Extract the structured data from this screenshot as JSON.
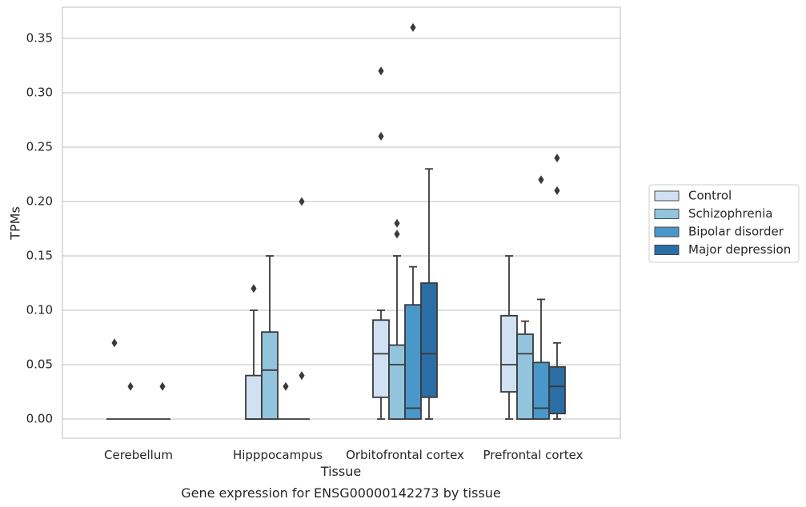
{
  "chart_data": {
    "type": "box",
    "title": "",
    "caption": "Gene expression for ENSG00000142273 by tissue",
    "xlabel": "Tissue",
    "ylabel": "TPMs",
    "ylim": [
      -0.018,
      0.378
    ],
    "yticks": [
      "0.00",
      "0.05",
      "0.10",
      "0.15",
      "0.20",
      "0.25",
      "0.30",
      "0.35"
    ],
    "ytick_values": [
      0,
      0.05,
      0.1,
      0.15,
      0.2,
      0.25,
      0.3,
      0.35
    ],
    "grid": "horizontal",
    "legend_position": "right",
    "categories": [
      "Cerebellum",
      "Hipppocampus",
      "Orbitofrontal cortex",
      "Prefrontal cortex"
    ],
    "series": [
      {
        "name": "Control",
        "color": "#cfe1f2",
        "boxes": [
          {
            "q1": 0,
            "median": 0,
            "q3": 0,
            "whislo": 0,
            "whishi": 0,
            "fliers": [
              0.07
            ]
          },
          {
            "q1": 0,
            "median": 0,
            "q3": 0.04,
            "whislo": 0,
            "whishi": 0.1,
            "fliers": [
              0.12
            ]
          },
          {
            "q1": 0.02,
            "median": 0.06,
            "q3": 0.091,
            "whislo": 0,
            "whishi": 0.1,
            "fliers": [
              0.26,
              0.32
            ]
          },
          {
            "q1": 0.025,
            "median": 0.05,
            "q3": 0.095,
            "whislo": 0,
            "whishi": 0.15,
            "fliers": []
          }
        ]
      },
      {
        "name": "Schizophrenia",
        "color": "#93c4de",
        "boxes": [
          {
            "q1": 0,
            "median": 0,
            "q3": 0,
            "whislo": 0,
            "whishi": 0,
            "fliers": [
              0.03
            ]
          },
          {
            "q1": 0,
            "median": 0.045,
            "q3": 0.08,
            "whislo": 0,
            "whishi": 0.15,
            "fliers": []
          },
          {
            "q1": 0,
            "median": 0.05,
            "q3": 0.068,
            "whislo": 0,
            "whishi": 0.15,
            "fliers": [
              0.17,
              0.18
            ]
          },
          {
            "q1": 0,
            "median": 0.06,
            "q3": 0.078,
            "whislo": 0,
            "whishi": 0.09,
            "fliers": []
          }
        ]
      },
      {
        "name": "Bipolar disorder",
        "color": "#4a98c9",
        "boxes": [
          {
            "q1": 0,
            "median": 0,
            "q3": 0,
            "whislo": 0,
            "whishi": 0,
            "fliers": []
          },
          {
            "q1": 0,
            "median": 0,
            "q3": 0,
            "whislo": 0,
            "whishi": 0,
            "fliers": [
              0.03
            ]
          },
          {
            "q1": 0,
            "median": 0.01,
            "q3": 0.105,
            "whislo": 0,
            "whishi": 0.14,
            "fliers": [
              0.36
            ]
          },
          {
            "q1": 0,
            "median": 0.01,
            "q3": 0.052,
            "whislo": 0,
            "whishi": 0.11,
            "fliers": [
              0.22
            ]
          }
        ]
      },
      {
        "name": "Major depression",
        "color": "#2b6ea6",
        "boxes": [
          {
            "q1": 0,
            "median": 0,
            "q3": 0,
            "whislo": 0,
            "whishi": 0,
            "fliers": [
              0.03
            ]
          },
          {
            "q1": 0,
            "median": 0,
            "q3": 0,
            "whislo": 0,
            "whishi": 0,
            "fliers": [
              0.04,
              0.2
            ]
          },
          {
            "q1": 0.02,
            "median": 0.06,
            "q3": 0.125,
            "whislo": 0,
            "whishi": 0.23,
            "fliers": []
          },
          {
            "q1": 0.005,
            "median": 0.03,
            "q3": 0.048,
            "whislo": 0,
            "whishi": 0.07,
            "fliers": [
              0.21,
              0.24
            ]
          }
        ]
      }
    ]
  }
}
